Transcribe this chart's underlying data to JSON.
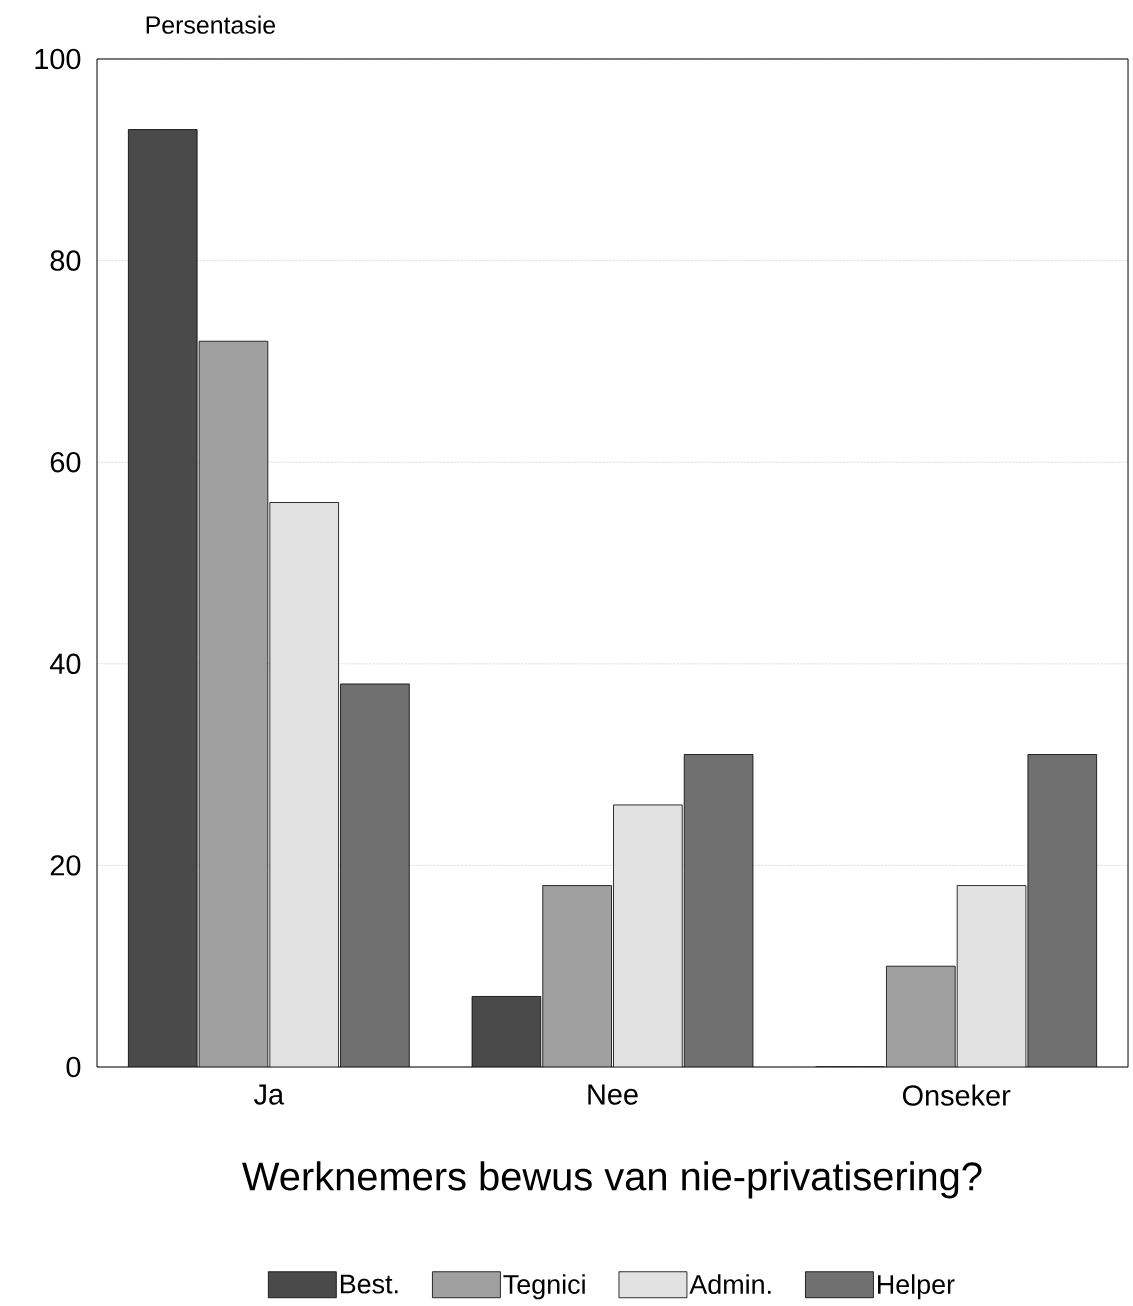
{
  "chart_data": {
    "type": "bar",
    "xlabel": "Werknemers bewus van nie-privatisering?",
    "ylabel": "Persentasie",
    "categories": [
      "Ja",
      "Nee",
      "Onseker"
    ],
    "series": [
      {
        "name": "Best.",
        "color": "#4a4a4a",
        "values": [
          93,
          7,
          0
        ]
      },
      {
        "name": "Tegnici",
        "color": "#a0a0a0",
        "values": [
          72,
          18,
          10
        ]
      },
      {
        "name": "Admin.",
        "color": "#e2e2e2",
        "values": [
          56,
          26,
          18
        ]
      },
      {
        "name": "Helper",
        "color": "#707070",
        "values": [
          38,
          31,
          31
        ]
      }
    ],
    "ylim": [
      0,
      100
    ],
    "yticks": [
      0,
      20,
      40,
      60,
      80,
      100
    ],
    "grid": "y",
    "legend": "bottom"
  }
}
